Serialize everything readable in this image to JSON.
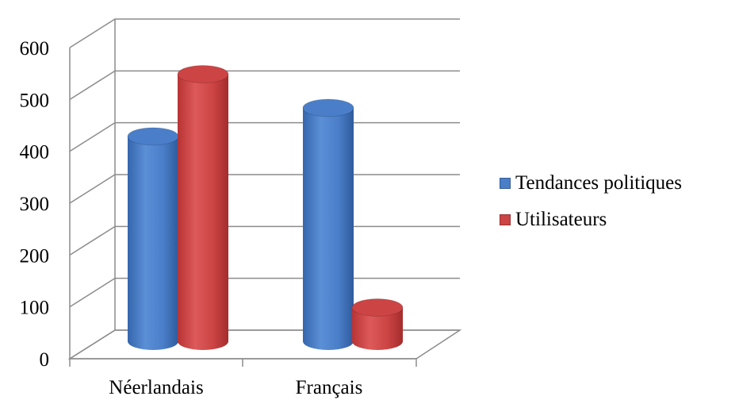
{
  "chart_data": {
    "type": "bar",
    "style": "3d-cylinder",
    "categories": [
      "Néerlandais",
      "Français"
    ],
    "series": [
      {
        "name": "Tendances politiques",
        "values": [
          395,
          450
        ],
        "color": "#4a7ec9"
      },
      {
        "name": "Utilisateurs",
        "values": [
          515,
          65
        ],
        "color": "#cc4444"
      }
    ],
    "yticks": [
      "0",
      "100",
      "200",
      "300",
      "400",
      "500",
      "600"
    ],
    "ylim": [
      0,
      600
    ],
    "grid": true,
    "legend_position": "right"
  }
}
